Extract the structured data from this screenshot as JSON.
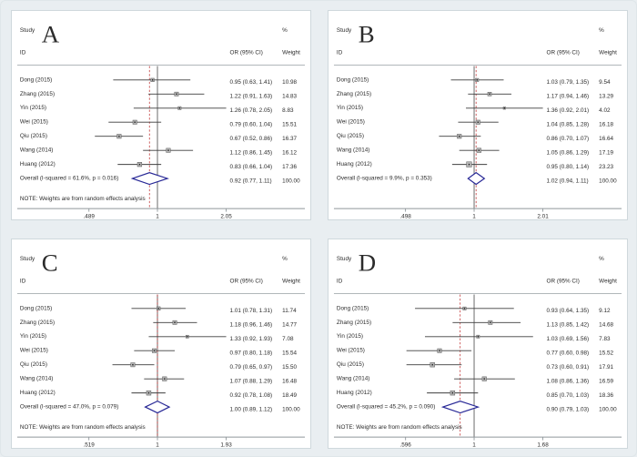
{
  "labels": {
    "study": "Study",
    "id": "ID",
    "or_header": "OR (95% CI)",
    "percent": "%",
    "weight": "Weight",
    "note": "NOTE: Weights are from random effects analysis",
    "overall_prefix": "Overall"
  },
  "colors": {
    "background": "#e9eef1",
    "panel_bg": "#ffffff",
    "panel_border": "#cfd8dc",
    "text": "#2b2b2b",
    "header_rule": "#a6adb1",
    "axis": "#8f979b",
    "null_line": "#6b6b6b",
    "ci_line": "#3f3f3f",
    "marker_fill": "#b5b5b5",
    "marker_stroke": "#5a5a5a",
    "marker_core": "#1a1a1a",
    "overall_dashed": "#c23b3b",
    "diamond": "#282896"
  },
  "chart_data": [
    {
      "type": "forest",
      "panel": "A",
      "axis_min": 0.489,
      "axis_max": 2.05,
      "axis_ticks": [
        ".489",
        "1",
        "2.05"
      ],
      "has_note": true,
      "studies": [
        {
          "label": "Dong (2015)",
          "or": 0.95,
          "lo": 0.63,
          "hi": 1.41,
          "weight": 10.98
        },
        {
          "label": "Zhang (2015)",
          "or": 1.22,
          "lo": 0.91,
          "hi": 1.63,
          "weight": 14.83
        },
        {
          "label": "Yin (2015)",
          "or": 1.26,
          "lo": 0.78,
          "hi": 2.05,
          "weight": 8.83
        },
        {
          "label": "Wei (2015)",
          "or": 0.79,
          "lo": 0.6,
          "hi": 1.04,
          "weight": 15.51
        },
        {
          "label": "Qiu (2015)",
          "or": 0.67,
          "lo": 0.52,
          "hi": 0.86,
          "weight": 16.37
        },
        {
          "label": "Wang (2014)",
          "or": 1.12,
          "lo": 0.86,
          "hi": 1.45,
          "weight": 16.12
        },
        {
          "label": "Huang (2012)",
          "or": 0.83,
          "lo": 0.66,
          "hi": 1.04,
          "weight": 17.36
        }
      ],
      "overall": {
        "label": "Overall  (I-squared = 61.6%, p = 0.016)",
        "or": 0.92,
        "lo": 0.77,
        "hi": 1.11,
        "weight": 100.0
      }
    },
    {
      "type": "forest",
      "panel": "B",
      "axis_min": 0.498,
      "axis_max": 2.01,
      "axis_ticks": [
        ".498",
        "1",
        "2.01"
      ],
      "has_note": false,
      "studies": [
        {
          "label": "Dong (2015)",
          "or": 1.03,
          "lo": 0.79,
          "hi": 1.35,
          "weight": 9.54
        },
        {
          "label": "Zhang (2015)",
          "or": 1.17,
          "lo": 0.94,
          "hi": 1.46,
          "weight": 13.29
        },
        {
          "label": "Yin (2015)",
          "or": 1.36,
          "lo": 0.92,
          "hi": 2.01,
          "weight": 4.02
        },
        {
          "label": "Wei (2015)",
          "or": 1.04,
          "lo": 0.85,
          "hi": 1.28,
          "weight": 16.18
        },
        {
          "label": "Qiu (2015)",
          "or": 0.86,
          "lo": 0.7,
          "hi": 1.07,
          "weight": 16.64
        },
        {
          "label": "Wang (2014)",
          "or": 1.05,
          "lo": 0.86,
          "hi": 1.29,
          "weight": 17.19
        },
        {
          "label": "Huang (2012)",
          "or": 0.95,
          "lo": 0.8,
          "hi": 1.14,
          "weight": 23.23
        }
      ],
      "overall": {
        "label": "Overall  (I-squared = 9.9%, p = 0.353)",
        "or": 1.02,
        "lo": 0.94,
        "hi": 1.11,
        "weight": 100.0
      }
    },
    {
      "type": "forest",
      "panel": "C",
      "axis_min": 0.519,
      "axis_max": 1.93,
      "axis_ticks": [
        ".519",
        "1",
        "1.93"
      ],
      "has_note": true,
      "studies": [
        {
          "label": "Dong (2015)",
          "or": 1.01,
          "lo": 0.78,
          "hi": 1.31,
          "weight": 11.74
        },
        {
          "label": "Zhang (2015)",
          "or": 1.18,
          "lo": 0.96,
          "hi": 1.46,
          "weight": 14.77
        },
        {
          "label": "Yin (2015)",
          "or": 1.33,
          "lo": 0.92,
          "hi": 1.93,
          "weight": 7.08
        },
        {
          "label": "Wei (2015)",
          "or": 0.97,
          "lo": 0.8,
          "hi": 1.18,
          "weight": 15.54
        },
        {
          "label": "Qiu (2015)",
          "or": 0.79,
          "lo": 0.65,
          "hi": 0.97,
          "weight": 15.5
        },
        {
          "label": "Wang (2014)",
          "or": 1.07,
          "lo": 0.88,
          "hi": 1.29,
          "weight": 16.48
        },
        {
          "label": "Huang (2012)",
          "or": 0.92,
          "lo": 0.78,
          "hi": 1.08,
          "weight": 18.49
        }
      ],
      "overall": {
        "label": "Overall  (I-squared = 47.0%, p = 0.079)",
        "or": 1.0,
        "lo": 0.89,
        "hi": 1.12,
        "weight": 100.0
      }
    },
    {
      "type": "forest",
      "panel": "D",
      "axis_min": 0.596,
      "axis_max": 1.68,
      "axis_ticks": [
        ".596",
        "1",
        "1.68"
      ],
      "has_note": true,
      "studies": [
        {
          "label": "Dong (2015)",
          "or": 0.93,
          "lo": 0.64,
          "hi": 1.35,
          "weight": 9.12
        },
        {
          "label": "Zhang (2015)",
          "or": 1.13,
          "lo": 0.85,
          "hi": 1.42,
          "weight": 14.68
        },
        {
          "label": "Yin (2015)",
          "or": 1.03,
          "lo": 0.69,
          "hi": 1.56,
          "weight": 7.83
        },
        {
          "label": "Wei (2015)",
          "or": 0.77,
          "lo": 0.6,
          "hi": 0.98,
          "weight": 15.52
        },
        {
          "label": "Qiu (2015)",
          "or": 0.73,
          "lo": 0.6,
          "hi": 0.91,
          "weight": 17.91
        },
        {
          "label": "Wang (2014)",
          "or": 1.08,
          "lo": 0.86,
          "hi": 1.36,
          "weight": 16.59
        },
        {
          "label": "Huang (2012)",
          "or": 0.85,
          "lo": 0.7,
          "hi": 1.03,
          "weight": 18.36
        }
      ],
      "overall": {
        "label": "Overall  (I-squared = 45.2%, p = 0.090)",
        "or": 0.9,
        "lo": 0.79,
        "hi": 1.03,
        "weight": 100.0
      }
    }
  ]
}
